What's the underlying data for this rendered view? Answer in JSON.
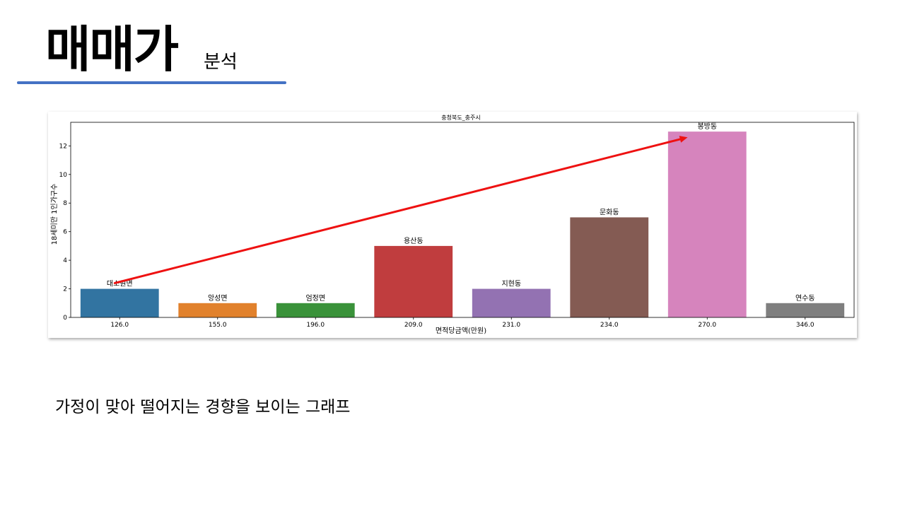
{
  "slide": {
    "title": "매매가",
    "subtitle": "분석",
    "caption": "가정이 맞아 떨어지는 경향을 보이는 그래프",
    "rule_color": "#4472c4"
  },
  "chart_data": {
    "type": "bar",
    "title": "충청북도_충주시",
    "xlabel": "면적당금액(만원)",
    "ylabel": "18세미만 1인가구수",
    "categories": [
      "126.0",
      "155.0",
      "196.0",
      "209.0",
      "231.0",
      "234.0",
      "270.0",
      "346.0"
    ],
    "values": [
      2,
      1,
      1,
      5,
      2,
      7,
      13,
      1
    ],
    "bar_labels": [
      "대소원면",
      "앙성면",
      "엄정면",
      "용산동",
      "지현동",
      "문화동",
      "봉방동",
      "연수동"
    ],
    "colors": [
      "#3274a1",
      "#e1812c",
      "#3a923a",
      "#c03d3e",
      "#9372b2",
      "#845b53",
      "#d684bd",
      "#7f7f7f"
    ],
    "ylim": [
      0,
      13.65
    ],
    "yticks": [
      "0",
      "2",
      "4",
      "6",
      "8",
      "10",
      "12"
    ],
    "grid": false,
    "annotation": {
      "type": "arrow",
      "color": "#ee1111",
      "from_category": "126.0",
      "from_value": 2.4,
      "to_category": "270.0",
      "to_value": 12.6
    }
  }
}
